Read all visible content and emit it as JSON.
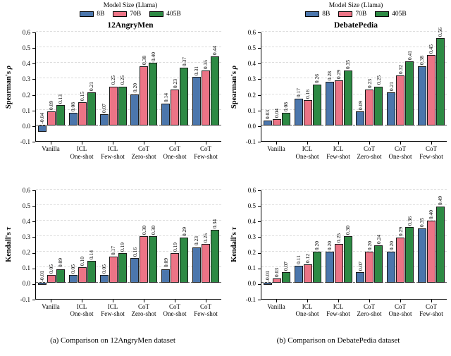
{
  "figure": {
    "legend": {
      "title": "Model Size (Llama)",
      "items": [
        {
          "label": "8B",
          "color": "#4b76ac"
        },
        {
          "label": "70B",
          "color": "#ec7486"
        },
        {
          "label": "405B",
          "color": "#2d8a44"
        }
      ]
    },
    "columns": [
      {
        "title": "12AngryMen",
        "caption": "(a) Comparison on 12AngryMen dataset"
      },
      {
        "title": "DebatePedia",
        "caption": "(b) Comparison on DebatePedia dataset"
      }
    ],
    "style": {
      "grid_color": "#dcdcdc",
      "zero_line_color": "#5c5c5c",
      "bar_edge_color": "#1a1a1a"
    }
  },
  "chart_data": [
    {
      "id": "spearman-12angrymen",
      "type": "bar",
      "title": "12AngryMen",
      "ylabel": "Spearman's",
      "ysymbol": "ρ",
      "xlabel": "",
      "ylim": [
        -0.1,
        0.6
      ],
      "yticks": [
        -0.1,
        0.0,
        0.1,
        0.2,
        0.3,
        0.4,
        0.5,
        0.6
      ],
      "grid": true,
      "legend_position": "above",
      "categories": [
        "Vanilla",
        "ICL\nOne-shot",
        "ICL\nFew-shot",
        "CoT\nZero-shot",
        "CoT\nOne-shot",
        "CoT\nFew-shot"
      ],
      "series": [
        {
          "name": "8B",
          "values": [
            -0.04,
            0.08,
            0.07,
            0.2,
            0.14,
            0.31
          ]
        },
        {
          "name": "70B",
          "values": [
            0.09,
            0.15,
            0.25,
            0.38,
            0.23,
            0.35
          ]
        },
        {
          "name": "405B",
          "values": [
            0.13,
            0.21,
            0.25,
            0.4,
            0.37,
            0.44
          ]
        }
      ]
    },
    {
      "id": "kendall-12angrymen",
      "type": "bar",
      "title": "12AngryMen",
      "ylabel": "Kendall's",
      "ysymbol": "τ",
      "xlabel": "",
      "ylim": [
        -0.1,
        0.6
      ],
      "yticks": [
        -0.1,
        0.0,
        0.1,
        0.2,
        0.3,
        0.4,
        0.5,
        0.6
      ],
      "grid": true,
      "legend_position": "above",
      "categories": [
        "Vanilla",
        "ICL\nOne-shot",
        "ICL\nFew-shot",
        "CoT\nZero-shot",
        "CoT\nOne-shot",
        "CoT\nFew-shot"
      ],
      "series": [
        {
          "name": "8B",
          "values": [
            -0.01,
            0.05,
            0.05,
            0.16,
            0.09,
            0.23
          ]
        },
        {
          "name": "70B",
          "values": [
            0.05,
            0.1,
            0.17,
            0.3,
            0.19,
            0.25
          ]
        },
        {
          "name": "405B",
          "values": [
            0.09,
            0.14,
            0.19,
            0.3,
            0.29,
            0.34
          ]
        }
      ]
    },
    {
      "id": "spearman-debatepedia",
      "type": "bar",
      "title": "DebatePedia",
      "ylabel": "Spearman's",
      "ysymbol": "ρ",
      "xlabel": "",
      "ylim": [
        -0.1,
        0.6
      ],
      "yticks": [
        -0.1,
        0.0,
        0.1,
        0.2,
        0.3,
        0.4,
        0.5,
        0.6
      ],
      "grid": true,
      "legend_position": "above",
      "categories": [
        "Vanilla",
        "ICL\nOne-shot",
        "ICL\nFew-shot",
        "CoT\nZero-shot",
        "CoT\nOne-shot",
        "CoT\nFew-shot"
      ],
      "series": [
        {
          "name": "8B",
          "values": [
            0.03,
            0.17,
            0.28,
            0.09,
            0.21,
            0.38
          ]
        },
        {
          "name": "70B",
          "values": [
            0.04,
            0.16,
            0.29,
            0.23,
            0.32,
            0.45
          ]
        },
        {
          "name": "405B",
          "values": [
            0.08,
            0.26,
            0.35,
            0.25,
            0.41,
            0.56
          ]
        }
      ]
    },
    {
      "id": "kendall-debatepedia",
      "type": "bar",
      "title": "DebatePedia",
      "ylabel": "Kendall's",
      "ysymbol": "τ",
      "xlabel": "",
      "ylim": [
        -0.1,
        0.6
      ],
      "yticks": [
        -0.1,
        0.0,
        0.1,
        0.2,
        0.3,
        0.4,
        0.5,
        0.6
      ],
      "grid": true,
      "legend_position": "above",
      "categories": [
        "Vanilla",
        "ICL\nOne-shot",
        "ICL\nFew-shot",
        "CoT\nZero-shot",
        "CoT\nOne-shot",
        "CoT\nFew-shot"
      ],
      "series": [
        {
          "name": "8B",
          "values": [
            -0.01,
            0.11,
            0.2,
            0.07,
            0.2,
            0.35
          ]
        },
        {
          "name": "70B",
          "values": [
            0.03,
            0.12,
            0.25,
            0.2,
            0.29,
            0.4
          ]
        },
        {
          "name": "405B",
          "values": [
            0.07,
            0.2,
            0.3,
            0.24,
            0.36,
            0.49
          ]
        }
      ]
    }
  ]
}
